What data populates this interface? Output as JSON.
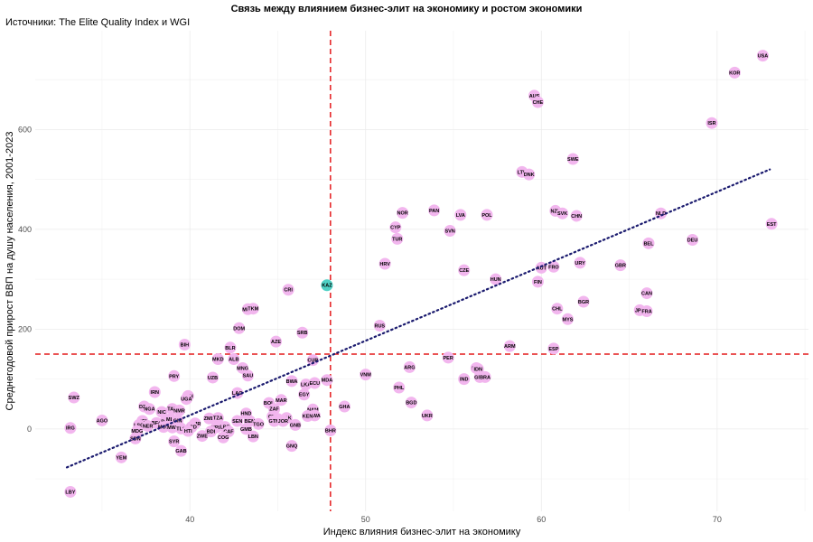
{
  "chart_data": {
    "type": "scatter",
    "title": "Связь между влиянием бизнес-элит на экономику и ростом экономики",
    "subtitle": "Источники: The Elite Quality Index и WGI",
    "xlabel": "Индекс влияния бизнес-элит на экономику",
    "ylabel": "Среднегодовой прирост ВВП на душу населения, 2001-2023",
    "xlim": [
      31.2,
      75.2
    ],
    "ylim": [
      -165,
      798
    ],
    "xticks": [
      40,
      50,
      60,
      70
    ],
    "yticks": [
      0,
      200,
      400,
      600
    ],
    "grid": true,
    "reference_lines": {
      "x": 48,
      "y": 150,
      "color": "#e41a1c",
      "style": "dashed"
    },
    "trendline": {
      "x": [
        33,
        73
      ],
      "y": [
        -77,
        520
      ],
      "color": "#1a1a6e",
      "style": "dotted"
    },
    "point_color": "#f2b6ee",
    "highlight_color": "#4fd1c5",
    "points": [
      {
        "label": "USA",
        "x": 72.6,
        "y": 748
      },
      {
        "label": "KOR",
        "x": 71.0,
        "y": 714
      },
      {
        "label": "ISR",
        "x": 69.7,
        "y": 613
      },
      {
        "label": "AUS",
        "x": 59.6,
        "y": 668
      },
      {
        "label": "CHE",
        "x": 59.8,
        "y": 655
      },
      {
        "label": "SWE",
        "x": 61.8,
        "y": 541
      },
      {
        "label": "LTU",
        "x": 58.9,
        "y": 515
      },
      {
        "label": "DNK",
        "x": 59.3,
        "y": 510
      },
      {
        "label": "NZL",
        "x": 60.8,
        "y": 437
      },
      {
        "label": "SVK",
        "x": 61.2,
        "y": 432
      },
      {
        "label": "CHN",
        "x": 62.0,
        "y": 427
      },
      {
        "label": "NLD",
        "x": 66.8,
        "y": 432
      },
      {
        "label": "EST",
        "x": 73.1,
        "y": 411
      },
      {
        "label": "DEU",
        "x": 68.6,
        "y": 379
      },
      {
        "label": "BEL",
        "x": 66.1,
        "y": 372
      },
      {
        "label": "NOR",
        "x": 52.1,
        "y": 433
      },
      {
        "label": "PAN",
        "x": 53.9,
        "y": 438
      },
      {
        "label": "LVA",
        "x": 55.4,
        "y": 429
      },
      {
        "label": "POL",
        "x": 56.9,
        "y": 429
      },
      {
        "label": "CYP",
        "x": 51.7,
        "y": 404
      },
      {
        "label": "SVN",
        "x": 54.8,
        "y": 397
      },
      {
        "label": "TUR",
        "x": 51.8,
        "y": 381
      },
      {
        "label": "URY",
        "x": 62.2,
        "y": 333
      },
      {
        "label": "GBR",
        "x": 64.5,
        "y": 328
      },
      {
        "label": "AUT",
        "x": 60.0,
        "y": 323
      },
      {
        "label": "FRO",
        "x": 60.7,
        "y": 325
      },
      {
        "label": "HRV",
        "x": 51.1,
        "y": 331
      },
      {
        "label": "CZE",
        "x": 55.6,
        "y": 318
      },
      {
        "label": "HUN",
        "x": 57.4,
        "y": 300
      },
      {
        "label": "FIN",
        "x": 59.8,
        "y": 295
      },
      {
        "label": "CAN",
        "x": 66.0,
        "y": 272
      },
      {
        "label": "BGR",
        "x": 62.4,
        "y": 255
      },
      {
        "label": "CHL",
        "x": 60.9,
        "y": 241
      },
      {
        "label": "JPN",
        "x": 65.6,
        "y": 238
      },
      {
        "label": "FRA",
        "x": 66.0,
        "y": 236
      },
      {
        "label": "MYS",
        "x": 61.5,
        "y": 220
      },
      {
        "label": "KAZ",
        "x": 47.8,
        "y": 288
      },
      {
        "label": "CRI",
        "x": 45.6,
        "y": 279
      },
      {
        "label": "MUS",
        "x": 43.3,
        "y": 240
      },
      {
        "label": "TKM",
        "x": 43.6,
        "y": 241
      },
      {
        "label": "DOM",
        "x": 42.8,
        "y": 202
      },
      {
        "label": "SRB",
        "x": 46.4,
        "y": 193
      },
      {
        "label": "RUS",
        "x": 50.8,
        "y": 207
      },
      {
        "label": "AZE",
        "x": 44.9,
        "y": 175
      },
      {
        "label": "BIH",
        "x": 39.7,
        "y": 169
      },
      {
        "label": "BLR",
        "x": 42.3,
        "y": 163
      },
      {
        "label": "ARM",
        "x": 58.2,
        "y": 166
      },
      {
        "label": "ESP",
        "x": 60.7,
        "y": 161
      },
      {
        "label": "MKD",
        "x": 41.6,
        "y": 140
      },
      {
        "label": "ALB",
        "x": 42.5,
        "y": 140
      },
      {
        "label": "CUB",
        "x": 47.0,
        "y": 138
      },
      {
        "label": "PER",
        "x": 54.7,
        "y": 143
      },
      {
        "label": "MNG",
        "x": 43.0,
        "y": 122
      },
      {
        "label": "ARG",
        "x": 52.5,
        "y": 124
      },
      {
        "label": "IRQ",
        "x": 56.3,
        "y": 122
      },
      {
        "label": "IDN",
        "x": 56.4,
        "y": 120
      },
      {
        "label": "SAU",
        "x": 43.3,
        "y": 107
      },
      {
        "label": "UZB",
        "x": 41.3,
        "y": 103
      },
      {
        "label": "PRY",
        "x": 39.1,
        "y": 106
      },
      {
        "label": "VNM",
        "x": 50.0,
        "y": 109
      },
      {
        "label": "BWA",
        "x": 45.8,
        "y": 96
      },
      {
        "label": "MDA",
        "x": 47.8,
        "y": 98
      },
      {
        "label": "LKA",
        "x": 46.6,
        "y": 89
      },
      {
        "label": "ECU",
        "x": 47.1,
        "y": 92
      },
      {
        "label": "GRC",
        "x": 56.5,
        "y": 104
      },
      {
        "label": "BRA",
        "x": 56.8,
        "y": 104
      },
      {
        "label": "IND",
        "x": 55.6,
        "y": 100
      },
      {
        "label": "PHL",
        "x": 51.9,
        "y": 83
      },
      {
        "label": "EGY",
        "x": 46.5,
        "y": 69
      },
      {
        "label": "LAO",
        "x": 42.7,
        "y": 72
      },
      {
        "label": "IRN",
        "x": 38.0,
        "y": 74
      },
      {
        "label": "SWZ",
        "x": 33.4,
        "y": 63
      },
      {
        "label": "MAR",
        "x": 45.2,
        "y": 58
      },
      {
        "label": "BOL",
        "x": 44.5,
        "y": 52
      },
      {
        "label": "BGD",
        "x": 52.6,
        "y": 53
      },
      {
        "label": "ZAF",
        "x": 44.8,
        "y": 40
      },
      {
        "label": "GHA",
        "x": 48.8,
        "y": 45
      },
      {
        "label": "DZA",
        "x": 37.4,
        "y": 45
      },
      {
        "label": "NGA",
        "x": 37.7,
        "y": 40
      },
      {
        "label": "ETH",
        "x": 39.9,
        "y": 66
      },
      {
        "label": "UGA",
        "x": 39.8,
        "y": 60
      },
      {
        "label": "NIC",
        "x": 38.4,
        "y": 34
      },
      {
        "label": "TAN",
        "x": 39.0,
        "y": 40
      },
      {
        "label": "NMR",
        "x": 39.4,
        "y": 37
      },
      {
        "label": "HND",
        "x": 43.2,
        "y": 31
      },
      {
        "label": "NAM",
        "x": 47.0,
        "y": 39
      },
      {
        "label": "RWA",
        "x": 47.1,
        "y": 27
      },
      {
        "label": "KEN",
        "x": 46.7,
        "y": 26
      },
      {
        "label": "CIV",
        "x": 44.7,
        "y": 25
      },
      {
        "label": "TUN",
        "x": 45.0,
        "y": 20
      },
      {
        "label": "PAK",
        "x": 45.5,
        "y": 22
      },
      {
        "label": "UKR",
        "x": 53.5,
        "y": 27
      },
      {
        "label": "ZMB",
        "x": 41.1,
        "y": 21
      },
      {
        "label": "TZA",
        "x": 41.6,
        "y": 22
      },
      {
        "label": "SEN",
        "x": 42.7,
        "y": 16
      },
      {
        "label": "BEN",
        "x": 43.4,
        "y": 16
      },
      {
        "label": "TGO",
        "x": 43.9,
        "y": 10
      },
      {
        "label": "GTM",
        "x": 44.8,
        "y": 16
      },
      {
        "label": "JOR",
        "x": 45.3,
        "y": 16
      },
      {
        "label": "GNB",
        "x": 46.0,
        "y": 8
      },
      {
        "label": "AGO",
        "x": 35.0,
        "y": 17
      },
      {
        "label": "IRG",
        "x": 33.2,
        "y": 2
      },
      {
        "label": "UGI",
        "x": 37.3,
        "y": 16
      },
      {
        "label": "BFA",
        "x": 38.1,
        "y": 12
      },
      {
        "label": "BDI",
        "x": 38.6,
        "y": 15
      },
      {
        "label": "MLI",
        "x": 38.9,
        "y": 20
      },
      {
        "label": "GIN",
        "x": 39.3,
        "y": 17
      },
      {
        "label": "LSO",
        "x": 37.1,
        "y": 8
      },
      {
        "label": "NER",
        "x": 37.6,
        "y": 6
      },
      {
        "label": "MOZ",
        "x": 38.5,
        "y": 4
      },
      {
        "label": "MWI",
        "x": 39.0,
        "y": 3
      },
      {
        "label": "CMR",
        "x": 40.3,
        "y": 11
      },
      {
        "label": "TLS",
        "x": 39.5,
        "y": 1
      },
      {
        "label": "LCD",
        "x": 40.1,
        "y": 4
      },
      {
        "label": "NPL",
        "x": 41.5,
        "y": 3
      },
      {
        "label": "LBR",
        "x": 42.0,
        "y": 4
      },
      {
        "label": "MDG",
        "x": 37.0,
        "y": -4
      },
      {
        "label": "HTI",
        "x": 39.9,
        "y": -4
      },
      {
        "label": "BDI",
        "x": 41.2,
        "y": -5
      },
      {
        "label": "CAF",
        "x": 42.2,
        "y": -5
      },
      {
        "label": "GMB",
        "x": 43.2,
        "y": 0
      },
      {
        "label": "BHR",
        "x": 48.0,
        "y": -3
      },
      {
        "label": "ZWE",
        "x": 40.7,
        "y": -14
      },
      {
        "label": "COG",
        "x": 41.9,
        "y": -17
      },
      {
        "label": "LBN",
        "x": 43.6,
        "y": -15
      },
      {
        "label": "SDN",
        "x": 36.9,
        "y": -19
      },
      {
        "label": "SYR",
        "x": 39.1,
        "y": -25
      },
      {
        "label": "GNQ",
        "x": 45.8,
        "y": -34
      },
      {
        "label": "GAB",
        "x": 39.5,
        "y": -44
      },
      {
        "label": "YEM",
        "x": 36.1,
        "y": -57
      },
      {
        "label": "LBY",
        "x": 33.2,
        "y": -126
      }
    ],
    "highlight_labels": [
      "KAZ"
    ]
  }
}
